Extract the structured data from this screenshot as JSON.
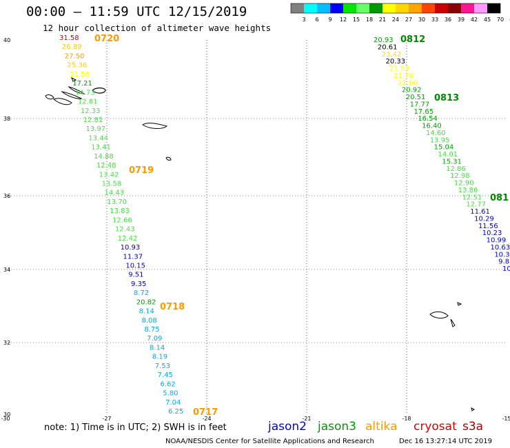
{
  "header": {
    "title": "00:00 – 11:59 UTC 12/15/2019",
    "subtitle": "12 hour collection of altimeter wave heights"
  },
  "color_scale": {
    "colors": [
      "#808080",
      "#00ffff",
      "#00bfff",
      "#0000ff",
      "#00e600",
      "#66ff66",
      "#009900",
      "#ffff00",
      "#ffd700",
      "#ffa500",
      "#ff4500",
      "#cc0000",
      "#8b0000",
      "#ff1493",
      "#ff99ff",
      "#000000"
    ],
    "labels": [
      "3",
      "6",
      "9",
      "12",
      "15",
      "18",
      "21",
      "24",
      "27",
      "30",
      "33",
      "36",
      "39",
      "42",
      "45",
      "70",
      "(ft)"
    ]
  },
  "map": {
    "lat_ticks": [
      "40",
      "38",
      "36",
      "34",
      "32",
      "30"
    ],
    "lon_ticks": [
      "-30",
      "-27",
      "-24",
      "-21",
      "-18",
      "-15"
    ]
  },
  "tracks": {
    "west": {
      "pass_labels": [
        {
          "text": "0720",
          "color": "#ff9900"
        },
        {
          "text": "0719",
          "color": "#ff9900"
        },
        {
          "text": "0718",
          "color": "#ff9900"
        },
        {
          "text": "0717",
          "color": "#ff9900"
        }
      ],
      "points": [
        {
          "v": "31.58",
          "c": "#cc0000"
        },
        {
          "v": "26.89",
          "c": "#ffcc00"
        },
        {
          "v": "27.50",
          "c": "#ff9900"
        },
        {
          "v": "25.36",
          "c": "#ffcc00"
        },
        {
          "v": "21.56",
          "c": "#ffff00"
        },
        {
          "v": "17.21",
          "c": "#00a000"
        },
        {
          "v": "14.73",
          "c": "#44dd44"
        },
        {
          "v": "12.81",
          "c": "#44dd44"
        },
        {
          "v": "12.33",
          "c": "#44dd44"
        },
        {
          "v": "12.81",
          "c": "#44dd44"
        },
        {
          "v": "13.97",
          "c": "#44dd44"
        },
        {
          "v": "13.44",
          "c": "#44dd44"
        },
        {
          "v": "13.41",
          "c": "#44dd44"
        },
        {
          "v": "14.88",
          "c": "#44dd44"
        },
        {
          "v": "12.48",
          "c": "#44dd44"
        },
        {
          "v": "13.42",
          "c": "#44dd44"
        },
        {
          "v": "13.58",
          "c": "#44dd44"
        },
        {
          "v": "14.43",
          "c": "#44dd44"
        },
        {
          "v": "13.70",
          "c": "#44dd44"
        },
        {
          "v": "13.83",
          "c": "#44dd44"
        },
        {
          "v": "12.66",
          "c": "#44dd44"
        },
        {
          "v": "12.43",
          "c": "#44dd44"
        },
        {
          "v": "12.42",
          "c": "#44dd44"
        },
        {
          "v": "10.93",
          "c": "#0000cc"
        },
        {
          "v": "11.37",
          "c": "#0000cc"
        },
        {
          "v": "10.15",
          "c": "#0000cc"
        },
        {
          "v": "9.51",
          "c": "#0000cc"
        },
        {
          "v": "9.35",
          "c": "#0000cc"
        },
        {
          "v": "8.72",
          "c": "#00aaee"
        },
        {
          "v": "20.82",
          "c": "#00a000"
        },
        {
          "v": "8.14",
          "c": "#00aaee"
        },
        {
          "v": "8.08",
          "c": "#00aaee"
        },
        {
          "v": "8.75",
          "c": "#00aaee"
        },
        {
          "v": "7.09",
          "c": "#00aaee"
        },
        {
          "v": "8.14",
          "c": "#00aaee"
        },
        {
          "v": "8.19",
          "c": "#00aaee"
        },
        {
          "v": "7.53",
          "c": "#00aaee"
        },
        {
          "v": "7.45",
          "c": "#00aaee"
        },
        {
          "v": "6.62",
          "c": "#00aaee"
        },
        {
          "v": "5.80",
          "c": "#00aaee"
        },
        {
          "v": "7.04",
          "c": "#00aaee"
        },
        {
          "v": "6.25",
          "c": "#00aaee"
        }
      ]
    },
    "east": {
      "pass_labels": [
        {
          "text": "0812",
          "color": "#008800"
        },
        {
          "text": "0813",
          "color": "#008800"
        },
        {
          "text": "081",
          "color": "#008800"
        }
      ],
      "points": [
        {
          "v": "20.93",
          "c": "#00a000"
        },
        {
          "v": "20.61",
          "c": "#000000"
        },
        {
          "v": "23.42",
          "c": "#ffdd00"
        },
        {
          "v": "20.33",
          "c": "#000000"
        },
        {
          "v": "21.53",
          "c": "#ffff00"
        },
        {
          "v": "21.70",
          "c": "#ffff00"
        },
        {
          "v": "22.80",
          "c": "#ffff00"
        },
        {
          "v": "20.92",
          "c": "#00a000"
        },
        {
          "v": "20.51",
          "c": "#00a000"
        },
        {
          "v": "17.77",
          "c": "#00a000"
        },
        {
          "v": "17.65",
          "c": "#00a000"
        },
        {
          "v": "16.54",
          "c": "#00a000"
        },
        {
          "v": "16.40",
          "c": "#00a000"
        },
        {
          "v": "14.60",
          "c": "#44dd44"
        },
        {
          "v": "13.95",
          "c": "#44dd44"
        },
        {
          "v": "15.04",
          "c": "#00a000"
        },
        {
          "v": "14.01",
          "c": "#44dd44"
        },
        {
          "v": "15.31",
          "c": "#00a000"
        },
        {
          "v": "12.86",
          "c": "#44dd44"
        },
        {
          "v": "12.98",
          "c": "#44dd44"
        },
        {
          "v": "12.90",
          "c": "#44dd44"
        },
        {
          "v": "13.86",
          "c": "#44dd44"
        },
        {
          "v": "12.51",
          "c": "#44dd44"
        },
        {
          "v": "12.77",
          "c": "#44dd44"
        },
        {
          "v": "11.61",
          "c": "#0000cc"
        },
        {
          "v": "10.29",
          "c": "#0000cc"
        },
        {
          "v": "11.56",
          "c": "#0000cc"
        },
        {
          "v": "10.23",
          "c": "#0000cc"
        },
        {
          "v": "10.99",
          "c": "#0000cc"
        },
        {
          "v": "10.63",
          "c": "#0000cc"
        },
        {
          "v": "10.3",
          "c": "#0000cc"
        },
        {
          "v": "9.8",
          "c": "#0000cc"
        },
        {
          "v": "10",
          "c": "#0000cc"
        }
      ]
    }
  },
  "footer": {
    "note": "note:  1) Time is in UTC;  2) SWH is in feet",
    "satellites": [
      {
        "name": "jason2",
        "color": "#0000ee"
      },
      {
        "name": "jason3",
        "color": "#009900"
      },
      {
        "name": "altika",
        "color": "#ff9900"
      },
      {
        "name": "cryosat",
        "color": "#dd0000"
      },
      {
        "name": "s3a",
        "color": "#aa0000"
      }
    ],
    "credit": "NOAA/NESDIS Center for Satellite Applications and Research",
    "timestamp": "Dec 16 13:27:14 UTC 2019"
  }
}
